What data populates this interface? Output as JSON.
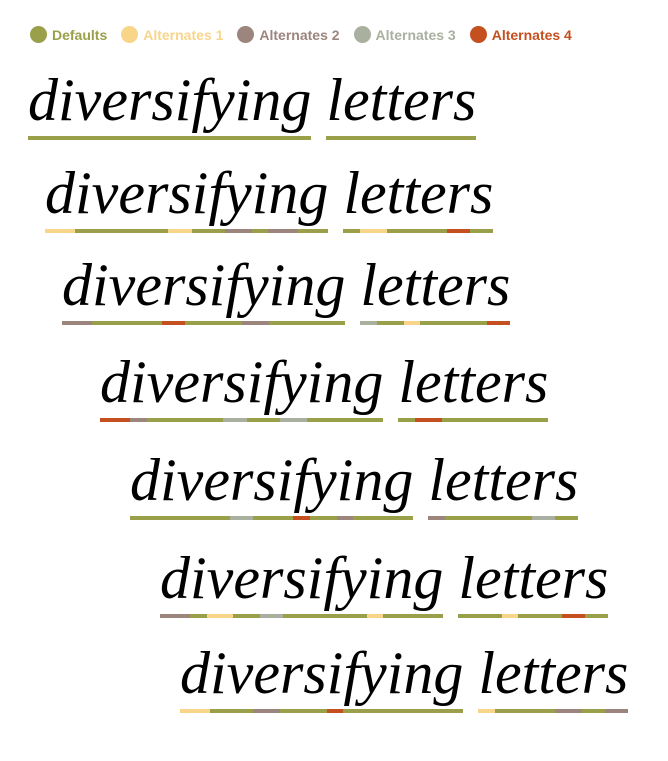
{
  "legend": [
    {
      "label": "Defaults",
      "color": "#9aa04a"
    },
    {
      "label": "Alternates 1",
      "color": "#f9d58a"
    },
    {
      "label": "Alternates 2",
      "color": "#9c857c"
    },
    {
      "label": "Alternates 3",
      "color": "#a9b09f"
    },
    {
      "label": "Alternates 4",
      "color": "#c4501f"
    }
  ],
  "lines": [
    {
      "text": "diversifying letters",
      "variants": [
        0,
        0,
        0,
        0,
        0,
        0,
        0,
        0,
        0,
        0,
        0,
        0,
        -1,
        0,
        0,
        0,
        0,
        0,
        0,
        0
      ]
    },
    {
      "text": "diversifying letters",
      "variants": [
        1,
        0,
        0,
        0,
        0,
        1,
        0,
        0,
        2,
        0,
        2,
        0,
        -1,
        0,
        1,
        0,
        0,
        0,
        4,
        0
      ]
    },
    {
      "text": "diversifying letters",
      "variants": [
        2,
        0,
        0,
        0,
        4,
        0,
        0,
        0,
        2,
        0,
        0,
        0,
        -1,
        3,
        0,
        1,
        0,
        0,
        0,
        4
      ]
    },
    {
      "text": "diversifying letters",
      "variants": [
        4,
        2,
        0,
        0,
        0,
        3,
        0,
        0,
        3,
        0,
        0,
        0,
        -1,
        0,
        4,
        0,
        0,
        0,
        0,
        0
      ]
    },
    {
      "text": "diversifying letters",
      "variants": [
        0,
        0,
        0,
        0,
        3,
        0,
        0,
        4,
        0,
        2,
        0,
        0,
        -1,
        2,
        0,
        0,
        0,
        0,
        3,
        0
      ]
    },
    {
      "text": "diversifying letters",
      "variants": [
        2,
        0,
        1,
        0,
        3,
        0,
        0,
        0,
        0,
        1,
        0,
        0,
        -1,
        0,
        0,
        1,
        0,
        0,
        4,
        0
      ]
    },
    {
      "text": "diversifying letters",
      "variants": [
        1,
        0,
        0,
        2,
        0,
        0,
        4,
        0,
        0,
        0,
        0,
        0,
        -1,
        1,
        0,
        0,
        0,
        2,
        0,
        2
      ]
    }
  ]
}
